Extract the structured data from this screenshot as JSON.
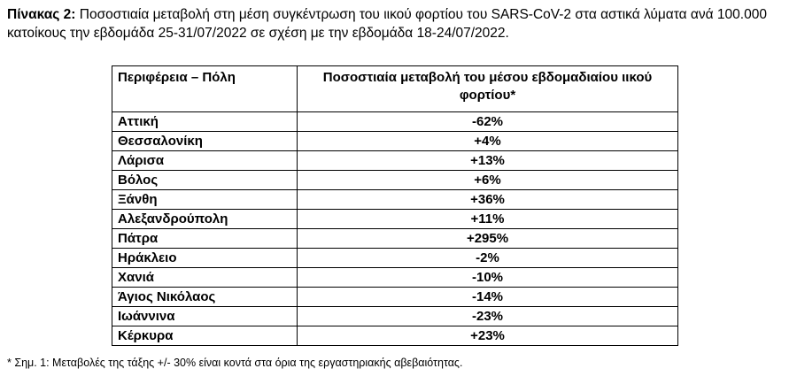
{
  "caption": {
    "label": "Πίνακας 2:",
    "text": "Ποσοστιαία μεταβολή στη μέση συγκέντρωση του ιικού φορτίου του SARS-CoV-2 στα αστικά λύματα ανά 100.000 κατοίκους την εβδομάδα 25-31/07/2022 σε σχέση με την εβδομάδα 18-24/07/2022."
  },
  "table": {
    "headers": {
      "region": "Περιφέρεια – Πόλη",
      "change": "Ποσοστιαία μεταβολή του μέσου εβδομαδιαίου ιικού φορτίου*"
    },
    "rows": [
      {
        "region": "Αττική",
        "change": "-62%"
      },
      {
        "region": "Θεσσαλονίκη",
        "change": "+4%"
      },
      {
        "region": "Λάρισα",
        "change": "+13%"
      },
      {
        "region": "Βόλος",
        "change": "+6%"
      },
      {
        "region": "Ξάνθη",
        "change": "+36%"
      },
      {
        "region": "Αλεξανδρούπολη",
        "change": "+11%"
      },
      {
        "region": "Πάτρα",
        "change": "+295%"
      },
      {
        "region": "Ηράκλειο",
        "change": "-2%"
      },
      {
        "region": "Χανιά",
        "change": "-10%"
      },
      {
        "region": "Άγιος Νικόλαος",
        "change": "-14%"
      },
      {
        "region": "Ιωάννινα",
        "change": "-23%"
      },
      {
        "region": "Κέρκυρα",
        "change": "+23%"
      }
    ]
  },
  "footnote": "* Σημ. 1: Μεταβολές της τάξης +/- 30% είναι κοντά στα όρια της εργαστηριακής αβεβαιότητας."
}
